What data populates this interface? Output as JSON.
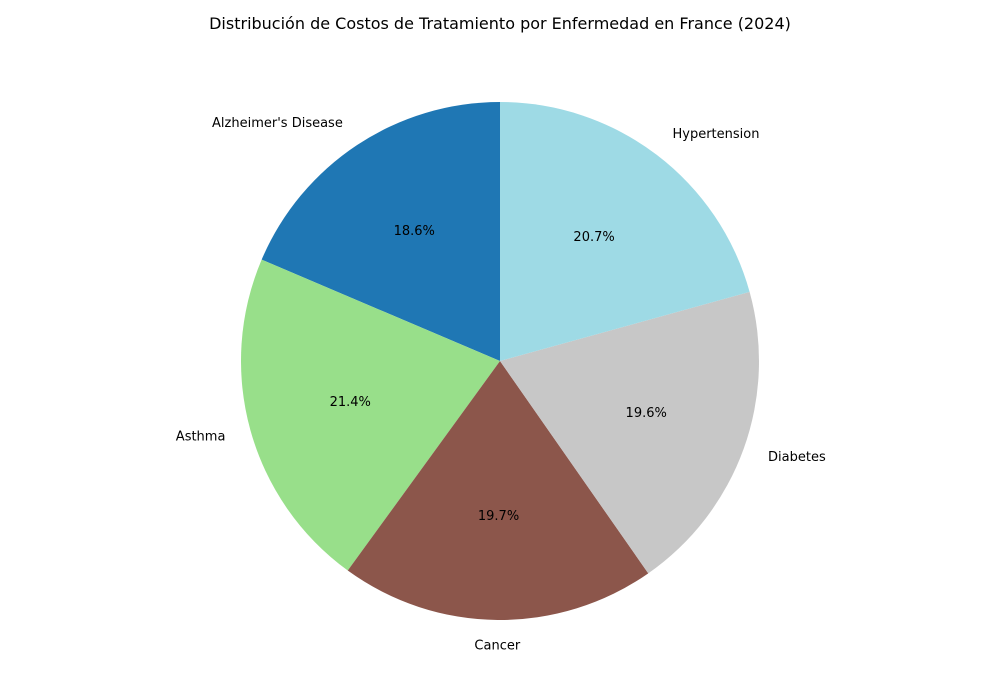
{
  "chart_data": {
    "type": "pie",
    "title": "Distribución de Costos de Tratamiento por Enfermedad en France (2024)",
    "slices": [
      {
        "label": "Alzheimer's Disease",
        "value": 18.6,
        "pct_label": "18.6%",
        "color": "#1f77b4"
      },
      {
        "label": "Asthma",
        "value": 21.4,
        "pct_label": "21.4%",
        "color": "#98df8a"
      },
      {
        "label": "Cancer",
        "value": 19.7,
        "pct_label": "19.7%",
        "color": "#8c564b"
      },
      {
        "label": "Diabetes",
        "value": 19.6,
        "pct_label": "19.6%",
        "color": "#c7c7c7"
      },
      {
        "label": "Hypertension",
        "value": 20.7,
        "pct_label": "20.7%",
        "color": "#9edae5"
      }
    ],
    "start_angle_deg": 90,
    "direction": "counterclockwise",
    "legend": "none"
  }
}
